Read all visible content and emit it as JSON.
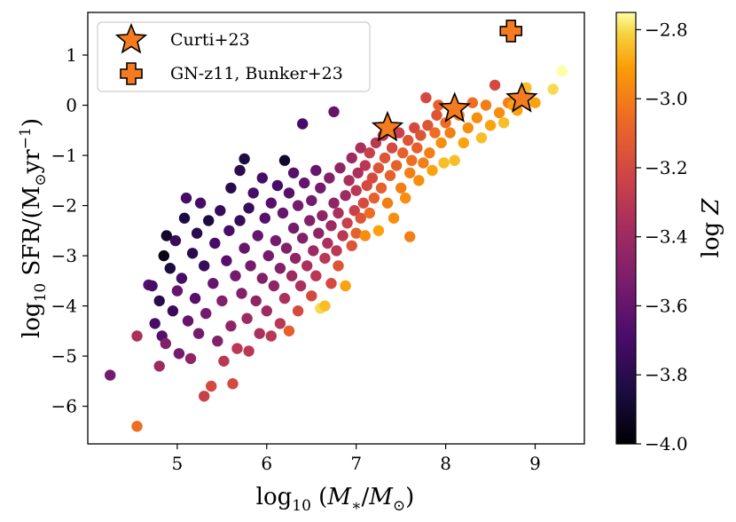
{
  "chart_data": {
    "type": "scatter",
    "xlabel": "log10 (M*/M⊙)",
    "ylabel": "log10 SFR/(M⊙yr⁻¹)",
    "xlim": [
      4.0,
      9.55
    ],
    "ylim": [
      -6.75,
      1.85
    ],
    "xticks": [
      5,
      6,
      7,
      8,
      9
    ],
    "yticks": [
      1,
      0,
      -1,
      -2,
      -3,
      -4,
      -5,
      -6
    ],
    "colorbar": {
      "label": "log Z",
      "colormap": "inferno",
      "range": [
        -4.0,
        -2.75
      ],
      "ticks": [
        -2.8,
        -3.0,
        -3.2,
        -3.4,
        -3.6,
        -3.8,
        -4.0
      ]
    },
    "legend": {
      "location": "top-left",
      "entries": [
        {
          "label": "Curti+23",
          "marker": "star",
          "color": "#f47b20"
        },
        {
          "label": "GN-z11, Bunker+23",
          "marker": "plus",
          "color": "#f47b20"
        }
      ]
    },
    "series": [
      {
        "name": "Curti+23",
        "marker": "star",
        "points": [
          [
            7.35,
            -0.45
          ],
          [
            8.1,
            -0.07
          ],
          [
            8.85,
            0.13
          ]
        ]
      },
      {
        "name": "GN-z11, Bunker+23",
        "marker": "plus",
        "points": [
          [
            8.73,
            1.48
          ]
        ]
      },
      {
        "name": "",
        "marker": "circle",
        "points": [
          [
            4.25,
            -5.38,
            -3.55
          ],
          [
            4.55,
            -6.4,
            -3.05
          ],
          [
            4.55,
            -4.6,
            -3.35
          ],
          [
            4.68,
            -3.58,
            -3.65
          ],
          [
            4.72,
            -3.6,
            -3.7
          ],
          [
            4.75,
            -4.35,
            -3.7
          ],
          [
            4.8,
            -3.9,
            -3.8
          ],
          [
            4.8,
            -5.2,
            -3.4
          ],
          [
            4.83,
            -4.6,
            -3.65
          ],
          [
            4.85,
            -3.0,
            -3.95
          ],
          [
            4.87,
            -4.75,
            -3.5
          ],
          [
            4.88,
            -2.6,
            -3.9
          ],
          [
            4.92,
            -3.25,
            -3.85
          ],
          [
            4.95,
            -4.1,
            -3.75
          ],
          [
            4.98,
            -2.7,
            -3.75
          ],
          [
            5.0,
            -3.7,
            -3.6
          ],
          [
            5.02,
            -4.95,
            -3.55
          ],
          [
            5.05,
            -3.45,
            -3.7
          ],
          [
            5.08,
            -2.25,
            -3.85
          ],
          [
            5.1,
            -1.85,
            -3.7
          ],
          [
            5.12,
            -4.3,
            -3.6
          ],
          [
            5.15,
            -5.05,
            -3.45
          ],
          [
            5.17,
            -2.95,
            -3.8
          ],
          [
            5.2,
            -3.85,
            -3.65
          ],
          [
            5.22,
            -2.55,
            -3.8
          ],
          [
            5.24,
            -4.55,
            -3.55
          ],
          [
            5.26,
            -1.95,
            -3.7
          ],
          [
            5.3,
            -3.2,
            -3.75
          ],
          [
            5.3,
            -5.8,
            -3.25
          ],
          [
            5.32,
            -4.15,
            -3.55
          ],
          [
            5.35,
            -2.3,
            -3.85
          ],
          [
            5.38,
            -5.6,
            -3.2
          ],
          [
            5.4,
            -3.55,
            -3.6
          ],
          [
            5.42,
            -2.75,
            -3.7
          ],
          [
            5.45,
            -4.7,
            -3.5
          ],
          [
            5.48,
            -2.1,
            -3.75
          ],
          [
            5.5,
            -3.9,
            -3.5
          ],
          [
            5.52,
            -5.1,
            -3.3
          ],
          [
            5.55,
            -3.1,
            -3.65
          ],
          [
            5.58,
            -2.5,
            -3.7
          ],
          [
            5.6,
            -4.4,
            -3.45
          ],
          [
            5.6,
            -1.65,
            -3.8
          ],
          [
            5.62,
            -5.55,
            -3.2
          ],
          [
            5.65,
            -3.4,
            -3.55
          ],
          [
            5.67,
            -4.85,
            -3.3
          ],
          [
            5.7,
            -2.3,
            -3.75
          ],
          [
            5.7,
            -1.3,
            -3.8
          ],
          [
            5.72,
            -3.75,
            -3.5
          ],
          [
            5.75,
            -2.85,
            -3.6
          ],
          [
            5.75,
            -1.07,
            -3.85
          ],
          [
            5.78,
            -4.25,
            -3.4
          ],
          [
            5.8,
            -2.05,
            -3.75
          ],
          [
            5.8,
            -4.9,
            -3.3
          ],
          [
            5.82,
            -3.2,
            -3.55
          ],
          [
            5.85,
            -1.75,
            -3.7
          ],
          [
            5.88,
            -3.9,
            -3.45
          ],
          [
            5.9,
            -2.6,
            -3.6
          ],
          [
            5.92,
            -4.55,
            -3.35
          ],
          [
            5.95,
            -3.45,
            -3.5
          ],
          [
            5.95,
            -1.45,
            -3.7
          ],
          [
            5.98,
            -2.25,
            -3.65
          ],
          [
            6.0,
            -4.1,
            -3.4
          ],
          [
            6.02,
            -3.0,
            -3.55
          ],
          [
            6.05,
            -1.95,
            -3.65
          ],
          [
            6.05,
            -4.6,
            -3.3
          ],
          [
            6.08,
            -3.6,
            -3.45
          ],
          [
            6.1,
            -2.7,
            -3.55
          ],
          [
            6.12,
            -1.6,
            -3.7
          ],
          [
            6.15,
            -3.25,
            -3.5
          ],
          [
            6.15,
            -4.35,
            -3.3
          ],
          [
            6.18,
            -2.15,
            -3.6
          ],
          [
            6.2,
            -1.1,
            -3.9
          ],
          [
            6.2,
            -3.85,
            -3.35
          ],
          [
            6.22,
            -2.85,
            -3.5
          ],
          [
            6.25,
            -1.75,
            -3.65
          ],
          [
            6.25,
            -4.5,
            -3.1
          ],
          [
            6.28,
            -3.4,
            -3.4
          ],
          [
            6.3,
            -2.45,
            -3.55
          ],
          [
            6.3,
            -1.35,
            -3.65
          ],
          [
            6.32,
            -3.05,
            -3.45
          ],
          [
            6.35,
            -2.0,
            -3.55
          ],
          [
            6.35,
            -4.1,
            -3.2
          ],
          [
            6.38,
            -3.6,
            -3.35
          ],
          [
            6.4,
            -2.65,
            -3.5
          ],
          [
            6.4,
            -0.37,
            -3.7
          ],
          [
            6.42,
            -1.55,
            -3.6
          ],
          [
            6.45,
            -3.2,
            -3.35
          ],
          [
            6.48,
            -2.3,
            -3.5
          ],
          [
            6.5,
            -3.8,
            -3.2
          ],
          [
            6.5,
            -1.9,
            -3.55
          ],
          [
            6.52,
            -2.9,
            -3.4
          ],
          [
            6.55,
            -1.3,
            -3.6
          ],
          [
            6.55,
            -3.4,
            -3.3
          ],
          [
            6.58,
            -2.55,
            -3.45
          ],
          [
            6.6,
            -4.05,
            -2.8
          ],
          [
            6.6,
            -1.65,
            -3.55
          ],
          [
            6.62,
            -2.2,
            -3.45
          ],
          [
            6.65,
            -3.05,
            -3.3
          ],
          [
            6.65,
            -4.0,
            -2.85
          ],
          [
            6.68,
            -2.75,
            -3.35
          ],
          [
            6.7,
            -1.45,
            -3.5
          ],
          [
            6.72,
            -2.4,
            -3.4
          ],
          [
            6.72,
            -3.55,
            -3.2
          ],
          [
            6.75,
            -0.13,
            -3.6
          ],
          [
            6.75,
            -1.95,
            -3.45
          ],
          [
            6.78,
            -2.9,
            -3.3
          ],
          [
            6.8,
            -2.15,
            -3.35
          ],
          [
            6.8,
            -3.2,
            -3.15
          ],
          [
            6.82,
            -1.25,
            -3.45
          ],
          [
            6.85,
            -2.6,
            -3.3
          ],
          [
            6.88,
            -1.8,
            -3.4
          ],
          [
            6.88,
            -3.6,
            -2.9
          ],
          [
            6.9,
            -2.35,
            -3.25
          ],
          [
            6.92,
            -1.5,
            -3.35
          ],
          [
            6.95,
            -2.8,
            -3.15
          ],
          [
            6.95,
            -1.05,
            -3.4
          ],
          [
            6.98,
            -2.1,
            -3.25
          ],
          [
            7.0,
            -1.7,
            -3.3
          ],
          [
            7.0,
            -2.55,
            -3.1
          ],
          [
            7.02,
            -1.35,
            -3.35
          ],
          [
            7.05,
            -2.25,
            -3.15
          ],
          [
            7.05,
            -0.85,
            -3.35
          ],
          [
            7.08,
            -1.95,
            -3.2
          ],
          [
            7.1,
            -1.2,
            -3.3
          ],
          [
            7.1,
            -2.6,
            -2.95
          ],
          [
            7.12,
            -1.6,
            -3.2
          ],
          [
            7.15,
            -0.95,
            -3.25
          ],
          [
            7.15,
            -2.15,
            -3.05
          ],
          [
            7.18,
            -1.45,
            -3.2
          ],
          [
            7.2,
            -1.85,
            -3.1
          ],
          [
            7.22,
            -0.75,
            -3.3
          ],
          [
            7.25,
            -1.25,
            -3.15
          ],
          [
            7.25,
            -2.5,
            -2.9
          ],
          [
            7.28,
            -1.65,
            -3.1
          ],
          [
            7.3,
            -0.6,
            -3.3
          ],
          [
            7.32,
            -1.05,
            -3.15
          ],
          [
            7.35,
            -1.95,
            -3.0
          ],
          [
            7.38,
            -1.4,
            -3.1
          ],
          [
            7.4,
            -0.85,
            -3.2
          ],
          [
            7.42,
            -2.25,
            -2.95
          ],
          [
            7.45,
            -1.2,
            -3.1
          ],
          [
            7.48,
            -0.55,
            -3.25
          ],
          [
            7.5,
            -1.65,
            -3.0
          ],
          [
            7.52,
            -0.95,
            -3.1
          ],
          [
            7.55,
            -1.85,
            -2.95
          ],
          [
            7.58,
            -0.7,
            -3.15
          ],
          [
            7.6,
            -2.62,
            -3.0
          ],
          [
            7.6,
            -1.35,
            -3.0
          ],
          [
            7.62,
            -1.1,
            -3.05
          ],
          [
            7.65,
            -0.45,
            -3.2
          ],
          [
            7.68,
            -0.85,
            -3.1
          ],
          [
            7.7,
            -1.5,
            -2.95
          ],
          [
            7.72,
            -0.6,
            -3.15
          ],
          [
            7.75,
            -1.15,
            -3.0
          ],
          [
            7.78,
            0.15,
            -3.2
          ],
          [
            7.8,
            -0.4,
            -3.15
          ],
          [
            7.82,
            -0.95,
            -3.0
          ],
          [
            7.85,
            -1.3,
            -2.9
          ],
          [
            7.88,
            -0.55,
            -3.05
          ],
          [
            7.9,
            -0.2,
            -3.15
          ],
          [
            7.92,
            0.0,
            -3.1
          ],
          [
            7.95,
            -0.75,
            -2.95
          ],
          [
            7.98,
            -1.15,
            -2.85
          ],
          [
            8.0,
            -0.35,
            -3.05
          ],
          [
            8.05,
            -0.55,
            -3.0
          ],
          [
            8.1,
            -1.1,
            -2.85
          ],
          [
            8.15,
            -0.2,
            -3.0
          ],
          [
            8.2,
            -0.75,
            -2.9
          ],
          [
            8.25,
            -0.45,
            -2.95
          ],
          [
            8.3,
            0.05,
            -3.05
          ],
          [
            8.35,
            -0.25,
            -2.95
          ],
          [
            8.4,
            -0.65,
            -2.85
          ],
          [
            8.45,
            0.0,
            -3.0
          ],
          [
            8.5,
            -0.4,
            -2.9
          ],
          [
            8.55,
            0.4,
            -3.2
          ],
          [
            8.6,
            -0.15,
            -2.95
          ],
          [
            8.65,
            -0.35,
            -2.85
          ],
          [
            8.7,
            0.05,
            -3.0
          ],
          [
            8.75,
            0.0,
            -2.9
          ],
          [
            8.8,
            -0.1,
            -2.9
          ],
          [
            8.9,
            0.35,
            -2.85
          ],
          [
            9.0,
            0.05,
            -2.9
          ],
          [
            9.2,
            0.32,
            -2.8
          ],
          [
            9.3,
            0.68,
            -2.75
          ]
        ]
      }
    ]
  }
}
